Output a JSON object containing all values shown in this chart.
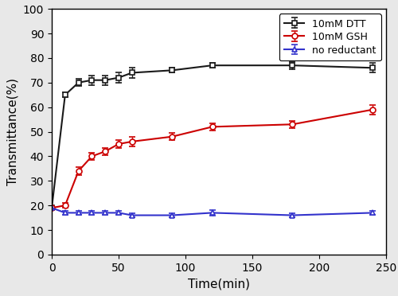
{
  "dtt_x": [
    0,
    10,
    20,
    30,
    40,
    50,
    60,
    90,
    120,
    180,
    240
  ],
  "dtt_y": [
    19,
    65,
    70,
    71,
    71,
    72,
    74,
    75,
    77,
    77,
    76
  ],
  "dtt_err": [
    0.5,
    1.0,
    1.5,
    2.0,
    2.0,
    2.0,
    2.0,
    1.0,
    1.0,
    1.5,
    2.0
  ],
  "gsh_x": [
    0,
    10,
    20,
    30,
    40,
    50,
    60,
    90,
    120,
    180,
    240
  ],
  "gsh_y": [
    19,
    20,
    34,
    40,
    42,
    45,
    46,
    48,
    52,
    53,
    59
  ],
  "gsh_err": [
    0.5,
    1.0,
    1.5,
    1.5,
    1.5,
    1.5,
    2.0,
    1.5,
    1.5,
    1.5,
    2.0
  ],
  "blue_x": [
    0,
    10,
    20,
    30,
    40,
    50,
    60,
    90,
    120,
    180,
    240
  ],
  "blue_y": [
    19,
    17,
    17,
    17,
    17,
    17,
    16,
    16,
    17,
    16,
    17
  ],
  "blue_err": [
    0.5,
    0.8,
    0.8,
    0.8,
    0.8,
    0.8,
    0.8,
    0.8,
    1.2,
    0.8,
    0.8
  ],
  "dtt_color": "#1a1a1a",
  "gsh_color": "#cc0000",
  "blue_color": "#3333cc",
  "xlabel": "Time(min)",
  "ylabel": "Transmittance(%)",
  "xlim": [
    0,
    250
  ],
  "ylim": [
    0,
    100
  ],
  "xticks": [
    0,
    50,
    100,
    150,
    200,
    250
  ],
  "yticks": [
    0,
    10,
    20,
    30,
    40,
    50,
    60,
    70,
    80,
    90,
    100
  ],
  "legend_dtt": "10mM DTT",
  "legend_gsh": "10mM GSH",
  "legend_blue": "no reductant",
  "fig_bgcolor": "#e8e8e8",
  "plot_bgcolor": "#ffffff",
  "figsize": [
    5.0,
    3.72
  ],
  "dpi": 100
}
